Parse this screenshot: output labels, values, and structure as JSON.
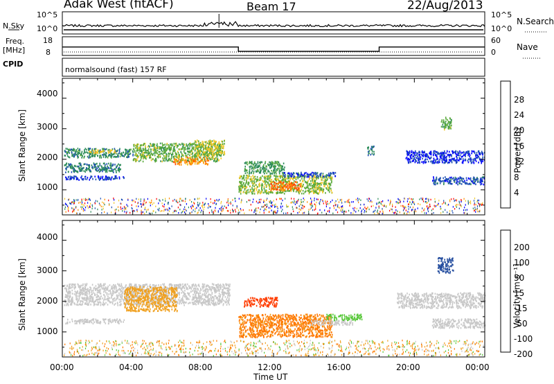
{
  "header": {
    "title": "Adak West (fitACF)",
    "beam": "Beam 17",
    "date": "22/Aug/2013"
  },
  "params": {
    "nsky_label": "N.Sky",
    "nsearch_label": "N.Search",
    "freq_label_1": "Freq.",
    "freq_label_2": "[MHz]",
    "nave_label": "Nave",
    "cpid_label": "CPID",
    "cpid_text": "normalsound (fast) 157 RF",
    "noise_ticks": [
      "10^5",
      "10^0"
    ],
    "freq_ticks": [
      "18",
      "8"
    ],
    "nave_ticks": [
      "60",
      "0"
    ]
  },
  "xaxis": {
    "label": "Time UT",
    "ticks": [
      "00:00",
      "04:00",
      "08:00",
      "12:00",
      "16:00",
      "20:00",
      "00:00"
    ]
  },
  "power_panel": {
    "ylabel": "Slant Range [km]",
    "yticks": [
      "1000",
      "2000",
      "3000",
      "4000"
    ],
    "cbar_label": "Power [dB]",
    "cbar_ticks": [
      "4",
      "8",
      "12",
      "16",
      "20",
      "24",
      "28"
    ],
    "cbar_colors": [
      "#0000ff",
      "#1e50b4",
      "#2d8c5a",
      "#5aaa3c",
      "#f0c828",
      "#ff8c00",
      "#ff3c00",
      "#ff0000"
    ]
  },
  "velocity_panel": {
    "ylabel": "Slant Range [km]",
    "yticks": [
      "1000",
      "2000",
      "3000",
      "4000"
    ],
    "cbar_label": "Velocity [m s⁻¹]",
    "cbar_ticks": [
      "200",
      "100",
      "50",
      "15",
      "-15",
      "-50",
      "-100",
      "-200"
    ],
    "cbar_colors": [
      "#1428c8",
      "#2850a0",
      "#2d8c5a",
      "#5ac83c",
      "#c8c8c8",
      "#f0a01e",
      "#ff7800",
      "#ff3c00",
      "#ff0000"
    ]
  },
  "chart_data": [
    {
      "type": "line",
      "name": "noise",
      "x_hours": [
        0,
        24
      ],
      "ylim": [
        0,
        5
      ],
      "yscale": "log",
      "level": 1.5
    },
    {
      "type": "line",
      "name": "frequency",
      "x_hours": [
        0,
        10,
        10,
        18,
        18,
        24
      ],
      "y": [
        12.5,
        12.5,
        10.2,
        10.2,
        12.5,
        12.5
      ],
      "ylim": [
        8,
        18
      ]
    },
    {
      "type": "heatmap",
      "name": "power",
      "xlim_hours": [
        0,
        24
      ],
      "ylim_km": [
        180,
        4650
      ],
      "regions": [
        {
          "x": [
            0.1,
            4.0
          ],
          "y": [
            2080,
            2380
          ],
          "v": 10
        },
        {
          "x": [
            1.5,
            3.0
          ],
          "y": [
            2230,
            2330
          ],
          "v": 18
        },
        {
          "x": [
            0.1,
            3.3
          ],
          "y": [
            1600,
            1900
          ],
          "v": 9
        },
        {
          "x": [
            0.1,
            3.5
          ],
          "y": [
            1350,
            1480
          ],
          "v": 5
        },
        {
          "x": [
            4.0,
            9.0
          ],
          "y": [
            1950,
            2550
          ],
          "v": 14
        },
        {
          "x": [
            6.3,
            8.3
          ],
          "y": [
            1850,
            2100
          ],
          "v": 22
        },
        {
          "x": [
            7.5,
            9.2
          ],
          "y": [
            2150,
            2650
          ],
          "v": 17
        },
        {
          "x": [
            10.0,
            15.3
          ],
          "y": [
            900,
            1500
          ],
          "v": 15
        },
        {
          "x": [
            11.8,
            13.5
          ],
          "y": [
            1000,
            1300
          ],
          "v": 24
        },
        {
          "x": [
            10.3,
            12.6
          ],
          "y": [
            1550,
            1950
          ],
          "v": 11
        },
        {
          "x": [
            12.5,
            15.5
          ],
          "y": [
            1450,
            1600
          ],
          "v": 6
        },
        {
          "x": [
            17.3,
            17.7
          ],
          "y": [
            2150,
            2450
          ],
          "v": 8
        },
        {
          "x": [
            19.5,
            24.0
          ],
          "y": [
            1900,
            2300
          ],
          "v": 4
        },
        {
          "x": [
            21.0,
            24.0
          ],
          "y": [
            1200,
            1450
          ],
          "v": 6
        },
        {
          "x": [
            21.5,
            22.1
          ],
          "y": [
            3000,
            3400
          ],
          "v": 14
        }
      ]
    },
    {
      "type": "heatmap",
      "name": "velocity",
      "xlim_hours": [
        0,
        24
      ],
      "ylim_km": [
        180,
        4650
      ],
      "regions": [
        {
          "x": [
            0.1,
            9.5
          ],
          "y": [
            1900,
            2600
          ],
          "v": 0
        },
        {
          "x": [
            0.1,
            3.5
          ],
          "y": [
            1300,
            1450
          ],
          "v": 0
        },
        {
          "x": [
            3.5,
            6.5
          ],
          "y": [
            1700,
            2500
          ],
          "v": -30
        },
        {
          "x": [
            10.0,
            15.3
          ],
          "y": [
            850,
            1600
          ],
          "v": -60
        },
        {
          "x": [
            10.3,
            12.2
          ],
          "y": [
            1850,
            2150
          ],
          "v": -120
        },
        {
          "x": [
            15.0,
            17.0
          ],
          "y": [
            1400,
            1600
          ],
          "v": 35
        },
        {
          "x": [
            14.0,
            16.5
          ],
          "y": [
            1250,
            1400
          ],
          "v": 0
        },
        {
          "x": [
            19.0,
            24.0
          ],
          "y": [
            1800,
            2300
          ],
          "v": 0
        },
        {
          "x": [
            21.0,
            24.0
          ],
          "y": [
            1150,
            1450
          ],
          "v": 0
        },
        {
          "x": [
            21.3,
            22.2
          ],
          "y": [
            2950,
            3450
          ],
          "v": 150
        }
      ]
    }
  ]
}
